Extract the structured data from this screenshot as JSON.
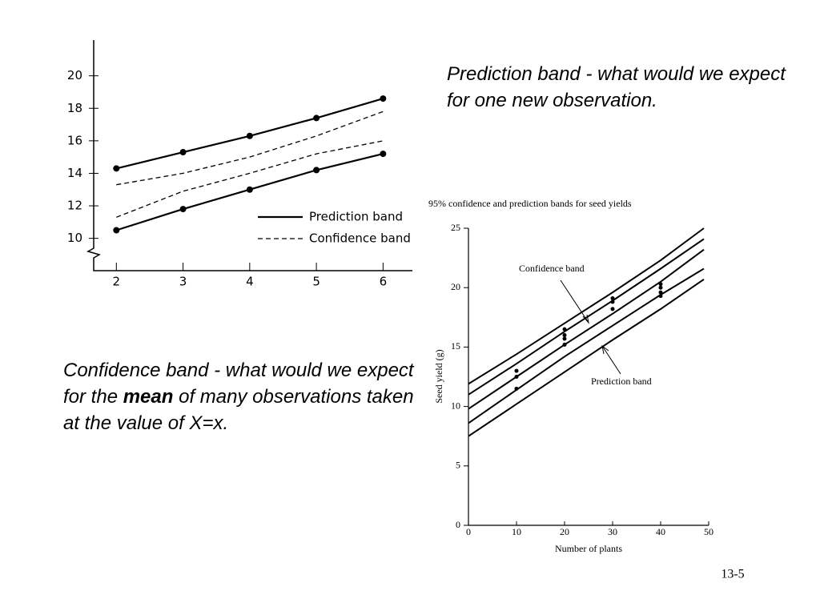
{
  "slide": {
    "note_prediction": "Prediction band - what would we expect for one new observation.",
    "note_confidence": [
      "Confidence band - what would we expect for the ",
      "mean",
      " of many observations taken at the value of X=x."
    ],
    "page_number": "13-5"
  },
  "chart_data": [
    {
      "type": "band",
      "x": [
        2,
        3,
        4,
        5,
        6
      ],
      "xlim": [
        1.66,
        6.44
      ],
      "xticks": [
        2,
        3,
        4,
        5,
        6
      ],
      "ylim": [
        8.8,
        22.2
      ],
      "yticks": [
        10,
        12,
        14,
        16,
        18,
        20
      ],
      "series": [
        {
          "name": "Prediction band",
          "style": "solid",
          "markers": true,
          "color": "#000000",
          "upper": [
            14.3,
            15.3,
            16.3,
            17.4,
            18.6
          ],
          "lower": [
            10.5,
            11.8,
            13.0,
            14.2,
            15.2
          ]
        },
        {
          "name": "Confidence band",
          "style": "dashed",
          "markers": false,
          "color": "#000000",
          "upper": [
            13.3,
            14.0,
            15.0,
            16.3,
            17.8
          ],
          "lower": [
            11.3,
            12.9,
            14.0,
            15.2,
            16.0
          ]
        }
      ]
    },
    {
      "type": "line",
      "title": "95% confidence and prediction bands for seed yields",
      "x_label": "Number of plants",
      "y_label": "Seed yield (g)",
      "x": [
        0,
        10,
        20,
        30,
        40,
        49
      ],
      "xlim": [
        0,
        50
      ],
      "xticks": [
        0,
        10,
        20,
        30,
        40,
        50
      ],
      "ylim": [
        0,
        25
      ],
      "yticks": [
        0,
        5,
        10,
        15,
        20,
        25
      ],
      "series": [
        {
          "color": "#000000",
          "values": [
            11.9,
            14.4,
            17.0,
            19.6,
            22.3,
            25.0
          ]
        },
        {
          "color": "#000000",
          "values": [
            11.0,
            13.6,
            16.3,
            18.9,
            21.6,
            24.1
          ]
        },
        {
          "color": "#000000",
          "values": [
            9.8,
            12.5,
            15.2,
            17.8,
            20.5,
            23.2
          ]
        },
        {
          "color": "#000000",
          "values": [
            8.6,
            11.4,
            14.2,
            16.8,
            19.4,
            21.6
          ]
        },
        {
          "color": "#000000",
          "values": [
            7.5,
            10.2,
            12.9,
            15.6,
            18.2,
            20.7
          ]
        }
      ],
      "points": {
        "x": [
          10,
          10,
          10,
          20,
          20,
          20,
          20,
          30,
          30,
          30,
          40,
          40,
          40,
          40
        ],
        "y": [
          13.0,
          12.5,
          11.5,
          16.5,
          16.0,
          15.7,
          15.2,
          19.1,
          18.8,
          18.2,
          20.3,
          20.0,
          19.6,
          19.3
        ]
      },
      "annotations": [
        "Confidence band",
        "Prediction band"
      ]
    }
  ]
}
